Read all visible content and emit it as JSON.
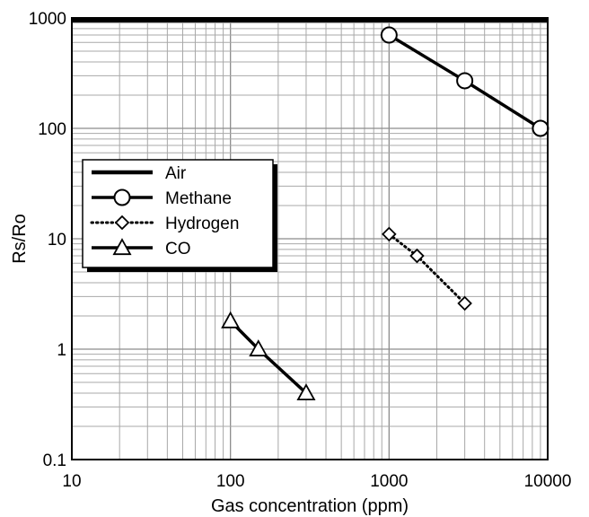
{
  "chart_data": {
    "type": "line",
    "x_scale": "log",
    "y_scale": "log",
    "xlim": [
      10,
      10000
    ],
    "ylim": [
      0.1,
      1000
    ],
    "xlabel": "Gas concentration (ppm)",
    "ylabel": "Rs/Ro",
    "x_tick_labels": [
      "10",
      "100",
      "1000",
      "10000"
    ],
    "y_tick_labels": [
      "0.1",
      "1",
      "10",
      "100",
      "1000"
    ],
    "grid": true,
    "legend_position": "left",
    "series": [
      {
        "name": "Air",
        "style": "solid-thick",
        "marker": "none",
        "x": [
          10,
          10000
        ],
        "y": [
          950,
          950
        ]
      },
      {
        "name": "Methane",
        "style": "solid",
        "marker": "circle",
        "x": [
          1000,
          3000,
          9000
        ],
        "y": [
          700,
          270,
          100
        ]
      },
      {
        "name": "Hydrogen",
        "style": "dotted",
        "marker": "diamond",
        "x": [
          1000,
          1500,
          3000
        ],
        "y": [
          11,
          7,
          2.6
        ]
      },
      {
        "name": "CO",
        "style": "solid",
        "marker": "triangle",
        "x": [
          100,
          150,
          300
        ],
        "y": [
          1.8,
          1.0,
          0.4
        ]
      }
    ]
  }
}
